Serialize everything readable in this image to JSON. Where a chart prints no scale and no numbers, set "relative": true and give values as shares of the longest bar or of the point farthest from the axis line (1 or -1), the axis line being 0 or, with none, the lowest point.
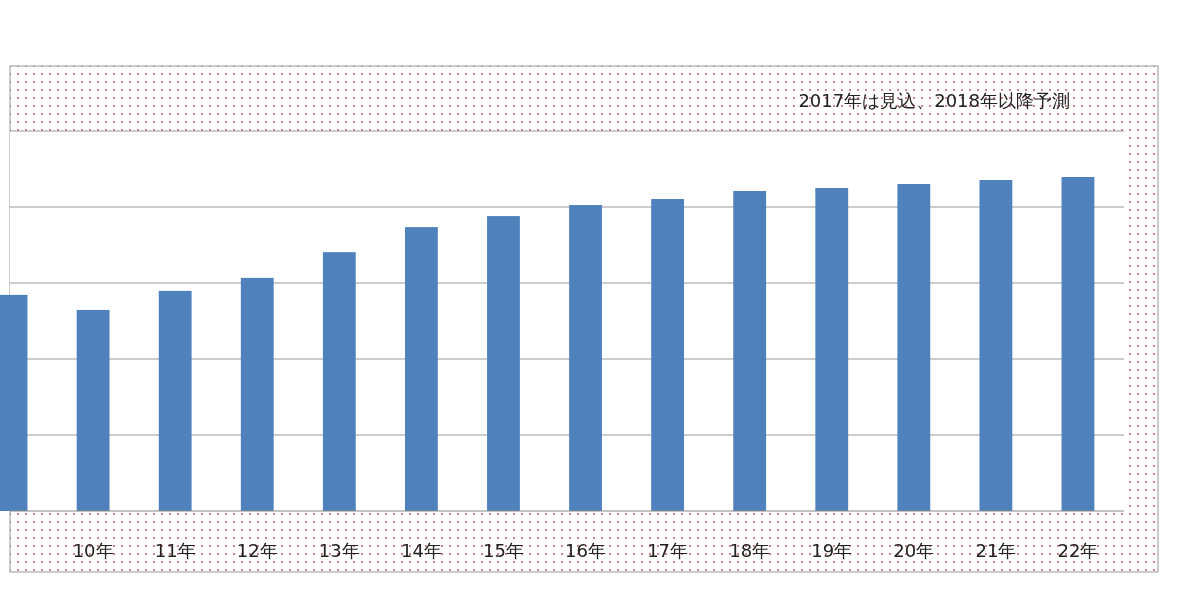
{
  "chart_data": {
    "type": "bar",
    "relative": true,
    "grid": true,
    "categories": [
      null,
      "10年",
      "11年",
      "12年",
      "13年",
      "14年",
      "15年",
      "16年",
      "17年",
      "18年",
      "19年",
      "20年",
      "21年",
      "22年"
    ],
    "values": [
      0.647,
      0.602,
      0.659,
      0.698,
      0.775,
      0.85,
      0.883,
      0.916,
      0.934,
      0.958,
      0.967,
      0.979,
      0.991,
      1
    ],
    "color": "#4f81bd",
    "annotations": [
      "2017年は見込、2018年以降予測"
    ]
  }
}
